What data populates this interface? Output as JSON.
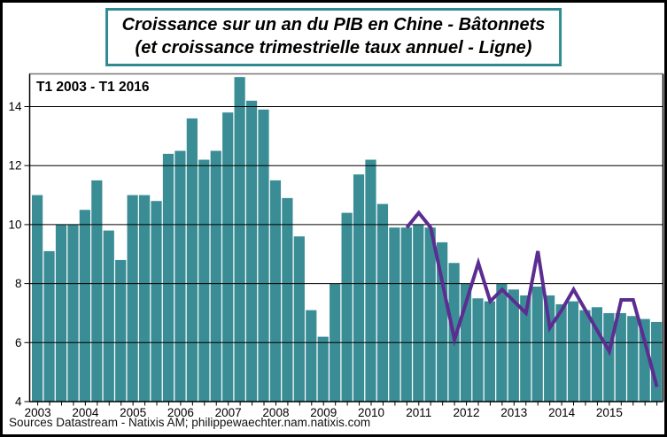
{
  "title": {
    "line1": "Croissance sur un an du PIB en Chine - Bâtonnets",
    "line2": "(et croissance trimestrielle taux annuel - Ligne)"
  },
  "period_label": "T1 2003 - T1 2016",
  "source": "Sources Datastream - Natixis AM; philippewaechter.nam.natixis.com",
  "colors": {
    "bar": "#3a8d95",
    "line": "#5c2d91",
    "grid": "#000000",
    "frame_top": "#777777",
    "frame": "#000000",
    "title_border": "#2e8b8f",
    "text": "#000000"
  },
  "chart_data": {
    "type": "bar",
    "title": "Croissance sur un an du PIB en Chine - Bâtonnets (et croissance trimestrielle taux annuel - Ligne)",
    "xlabel": "",
    "ylabel": "",
    "ylim": [
      4,
      15.1
    ],
    "yticks": [
      4,
      6,
      8,
      10,
      12,
      14
    ],
    "grid": true,
    "legend_position": "none",
    "x_year_labels": [
      "2003",
      "2004",
      "2005",
      "2006",
      "2007",
      "2008",
      "2009",
      "2010",
      "2011",
      "2012",
      "2013",
      "2014",
      "2015"
    ],
    "series": [
      {
        "name": "Croissance du PIB sur un an (%) - bâtonnets",
        "type": "bar",
        "quarters": [
          "2003-T1",
          "2003-T2",
          "2003-T3",
          "2003-T4",
          "2004-T1",
          "2004-T2",
          "2004-T3",
          "2004-T4",
          "2005-T1",
          "2005-T2",
          "2005-T3",
          "2005-T4",
          "2006-T1",
          "2006-T2",
          "2006-T3",
          "2006-T4",
          "2007-T1",
          "2007-T2",
          "2007-T3",
          "2007-T4",
          "2008-T1",
          "2008-T2",
          "2008-T3",
          "2008-T4",
          "2009-T1",
          "2009-T2",
          "2009-T3",
          "2009-T4",
          "2010-T1",
          "2010-T2",
          "2010-T3",
          "2010-T4",
          "2011-T1",
          "2011-T2",
          "2011-T3",
          "2011-T4",
          "2012-T1",
          "2012-T2",
          "2012-T3",
          "2012-T4",
          "2013-T1",
          "2013-T2",
          "2013-T3",
          "2013-T4",
          "2014-T1",
          "2014-T2",
          "2014-T3",
          "2014-T4",
          "2015-T1",
          "2015-T2",
          "2015-T3",
          "2015-T4",
          "2016-T1"
        ],
        "values": [
          11.0,
          9.1,
          10.0,
          10.0,
          10.5,
          11.5,
          9.8,
          8.8,
          11.0,
          11.0,
          10.8,
          12.4,
          12.5,
          13.6,
          12.2,
          12.5,
          13.8,
          15.0,
          14.2,
          13.9,
          11.5,
          10.9,
          9.6,
          7.1,
          6.2,
          8.0,
          10.4,
          11.7,
          12.2,
          10.7,
          9.9,
          9.9,
          10.0,
          9.9,
          9.4,
          8.7,
          8.0,
          7.5,
          7.4,
          8.0,
          7.8,
          7.6,
          7.9,
          7.6,
          7.3,
          7.4,
          7.1,
          7.2,
          7.0,
          7.0,
          6.9,
          6.8,
          6.7
        ]
      },
      {
        "name": "Croissance trimestrielle taux annuel (%) - ligne",
        "type": "line",
        "start_index": 31,
        "quarters": [
          "2010-T4",
          "2011-T1",
          "2011-T2",
          "2011-T3",
          "2011-T4",
          "2012-T1",
          "2012-T2",
          "2012-T3",
          "2012-T4",
          "2013-T1",
          "2013-T2",
          "2013-T3",
          "2013-T4",
          "2014-T1",
          "2014-T2",
          "2014-T3",
          "2014-T4",
          "2015-T1",
          "2015-T2",
          "2015-T3",
          "2015-T4",
          "2016-T1"
        ],
        "values": [
          9.9,
          10.4,
          9.9,
          8.0,
          6.1,
          7.4,
          8.7,
          7.4,
          7.8,
          7.4,
          7.0,
          9.1,
          6.5,
          7.1,
          7.8,
          7.1,
          6.4,
          5.7,
          7.45,
          7.45,
          6.0,
          4.5
        ]
      }
    ]
  }
}
